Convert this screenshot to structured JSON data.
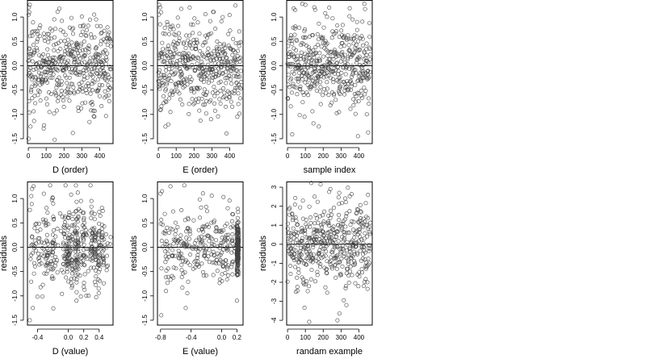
{
  "colors": {
    "points": "#444444",
    "axes": "#000000",
    "background": "#ffffff"
  },
  "chart_data": [
    {
      "type": "scatter",
      "xlabel": "D (order)",
      "ylabel": "residuals",
      "xlim": [
        -5,
        475
      ],
      "ylim": [
        -1.6,
        1.35
      ],
      "xticks": [
        0,
        100,
        200,
        300,
        400
      ],
      "xtick_labels": [
        "0",
        "100",
        "200",
        "300",
        "400"
      ],
      "yticks": [
        -1.5,
        -1.0,
        -0.5,
        0.0,
        0.5,
        1.0
      ],
      "ytick_labels": [
        "-1.5",
        "-1.0",
        "-0.5",
        "0.0",
        "0.5",
        "1.0"
      ],
      "zero_line": 0,
      "n_points": 460,
      "x_mode": "index",
      "notable_points": [
        [
          3,
          1.2
        ],
        [
          8,
          1.25
        ],
        [
          2,
          1.05
        ],
        [
          5,
          1.1
        ],
        [
          1,
          -1.5
        ],
        [
          12,
          -1.25
        ],
        [
          380,
          0.95
        ],
        [
          370,
          -1.05
        ],
        [
          245,
          0.75
        ]
      ]
    },
    {
      "type": "scatter",
      "xlabel": "E (order)",
      "ylabel": "residuals",
      "xlim": [
        -5,
        475
      ],
      "ylim": [
        -1.6,
        1.35
      ],
      "xticks": [
        0,
        100,
        200,
        300,
        400
      ],
      "xtick_labels": [
        "0",
        "100",
        "200",
        "300",
        "400"
      ],
      "yticks": [
        -1.5,
        -1.0,
        -0.5,
        0.0,
        0.5,
        1.0
      ],
      "ytick_labels": [
        "-1.5",
        "-1.0",
        "-0.5",
        "0.0",
        "0.5",
        "1.0"
      ],
      "zero_line": 0,
      "n_points": 460,
      "x_mode": "index",
      "notable_points": [
        [
          5,
          1.25
        ],
        [
          10,
          1.2
        ],
        [
          3,
          1.05
        ],
        [
          15,
          1.1
        ],
        [
          40,
          -1.25
        ],
        [
          295,
          -1.1
        ],
        [
          260,
          -0.8
        ]
      ]
    },
    {
      "type": "scatter",
      "xlabel": "sample index",
      "ylabel": "residuals",
      "xlim": [
        -5,
        475
      ],
      "ylim": [
        -1.6,
        1.35
      ],
      "xticks": [
        0,
        100,
        200,
        300,
        400
      ],
      "xtick_labels": [
        "0",
        "100",
        "200",
        "300",
        "400"
      ],
      "yticks": [
        -1.5,
        -1.0,
        -0.5,
        0.0,
        0.5,
        1.0
      ],
      "ytick_labels": [
        "-1.5",
        "-1.0",
        "-0.5",
        "0.0",
        "0.5",
        "1.0"
      ],
      "zero_line": 0,
      "n_points": 460,
      "x_mode": "index",
      "notable_points": [
        [
          100,
          1.25
        ],
        [
          150,
          1.2
        ],
        [
          155,
          1.15
        ],
        [
          365,
          0.95
        ],
        [
          390,
          0.9
        ],
        [
          395,
          -1.45
        ],
        [
          175,
          -1.25
        ],
        [
          95,
          -1.05
        ]
      ]
    },
    {
      "type": "scatter",
      "xlabel": "D (value)",
      "ylabel": "residuals",
      "xlim": [
        -0.53,
        0.58
      ],
      "ylim": [
        -1.6,
        1.35
      ],
      "xticks": [
        -0.4,
        0.0,
        0.2,
        0.4
      ],
      "xtick_labels": [
        "-0.4",
        "0.0",
        "0.2",
        "0.4"
      ],
      "yticks": [
        -1.5,
        -1.0,
        -0.5,
        0.0,
        0.5,
        1.0
      ],
      "ytick_labels": [
        "-1.5",
        "-1.0",
        "-0.5",
        "0.0",
        "0.5",
        "1.0"
      ],
      "zero_line": 0,
      "n_points": 460,
      "x_mode": "value",
      "x_clusters": [
        -0.28,
        -0.2,
        -0.05,
        0.0,
        0.05,
        0.1,
        0.12,
        0.2,
        0.3,
        0.35,
        0.4,
        0.45
      ],
      "notable_points": [
        [
          -0.47,
          1.2
        ],
        [
          -0.45,
          1.25
        ],
        [
          -0.48,
          1.05
        ],
        [
          -0.46,
          -1.25
        ],
        [
          -0.5,
          -1.5
        ],
        [
          0.3,
          0.95
        ],
        [
          0.12,
          -0.25
        ]
      ]
    },
    {
      "type": "scatter",
      "xlabel": "E (value)",
      "ylabel": "residuals",
      "xlim": [
        -0.84,
        0.28
      ],
      "ylim": [
        -1.6,
        1.35
      ],
      "xticks": [
        -0.8,
        -0.4,
        0.0,
        0.2
      ],
      "xtick_labels": [
        "-0.8",
        "-0.4",
        "0.0",
        "0.2"
      ],
      "yticks": [
        -1.5,
        -1.0,
        -0.5,
        0.0,
        0.5,
        1.0
      ],
      "ytick_labels": [
        "-1.5",
        "-1.0",
        "-0.5",
        "0.0",
        "0.5",
        "1.0"
      ],
      "zero_line": 0,
      "n_points": 460,
      "x_mode": "value",
      "dense_column_x": 0.21,
      "notable_points": [
        [
          -0.8,
          1.1
        ],
        [
          -0.78,
          1.15
        ],
        [
          -0.67,
          1.25
        ],
        [
          -0.79,
          -1.4
        ],
        [
          -0.47,
          -1.25
        ],
        [
          0.2,
          -1.1
        ],
        [
          0.21,
          0.6
        ]
      ]
    },
    {
      "type": "scatter",
      "xlabel": "randam example",
      "ylabel": "residuals",
      "xlim": [
        -5,
        475
      ],
      "ylim": [
        -4.25,
        3.3
      ],
      "xticks": [
        0,
        100,
        200,
        300,
        400
      ],
      "xtick_labels": [
        "0",
        "100",
        "200",
        "300",
        "400"
      ],
      "yticks": [
        -4,
        -3,
        -2,
        -1,
        0,
        1,
        2,
        3
      ],
      "ytick_labels": [
        "-4",
        "-3",
        "-2",
        "-1",
        "0",
        "1",
        "2",
        "3"
      ],
      "zero_line": 0,
      "n_points": 460,
      "x_mode": "index",
      "notable_points": [
        [
          185,
          3.15
        ],
        [
          290,
          2.7
        ],
        [
          280,
          -4.0
        ],
        [
          330,
          -3.2
        ],
        [
          240,
          2.9
        ],
        [
          120,
          -2.2
        ]
      ]
    }
  ]
}
